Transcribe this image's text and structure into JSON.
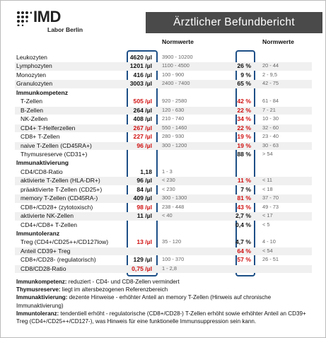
{
  "header": {
    "logo": "IMD",
    "logo_sub": "Labor Berlin",
    "title": "Ärztlicher Befundbericht"
  },
  "columns": {
    "norm_abs": "Normwerte",
    "norm_pct": "Normwerte"
  },
  "alert_color": "#d01010",
  "rows": [
    {
      "label": "Leukozyten",
      "value": "4620 /µl",
      "norm": "3900 - 10200"
    },
    {
      "label": "Lymphozyten",
      "value": "1201 /µl",
      "norm": "1100 - 4500",
      "percent": "26 %",
      "percent_norm": "20 - 44"
    },
    {
      "label": "Monozyten",
      "value": "416 /µl",
      "norm": "100 - 900",
      "percent": "9 %",
      "percent_norm": "2 - 9,5"
    },
    {
      "label": "Granulozyten",
      "value": "3003 /µl",
      "norm": "2400 - 7400",
      "percent": "65 %",
      "percent_norm": "42 - 75"
    },
    {
      "section": "Immunkompetenz"
    },
    {
      "label": "T-Zellen",
      "value": "505 /µl",
      "value_alert": true,
      "norm": "920 - 2580",
      "percent": "42 %",
      "percent_alert": true,
      "percent_norm": "61 - 84"
    },
    {
      "label": "B-Zellen",
      "value": "264 /µl",
      "norm": "120 - 630",
      "percent": "22 %",
      "percent_alert": true,
      "percent_norm": "7 - 21"
    },
    {
      "label": "NK-Zellen",
      "value": "408 /µl",
      "norm": "210 - 740",
      "percent": "34 %",
      "percent_alert": true,
      "percent_norm": "10 - 30"
    },
    {
      "label": "CD4+ T-Helferzellen",
      "value": "267 /µl",
      "value_alert": true,
      "norm": "550 - 1460",
      "percent": "22 %",
      "percent_alert": true,
      "percent_norm": "32 - 60"
    },
    {
      "label": "CD8+ T-Zellen",
      "value": "227 /µl",
      "value_alert": true,
      "norm": "280 - 930",
      "percent": "19 %",
      "percent_alert": true,
      "percent_norm": "23 - 40"
    },
    {
      "label": "naive T-Zellen (CD45RA+)",
      "value": "96 /µl",
      "value_alert": true,
      "norm": "300 - 1200",
      "percent": "19 %",
      "percent_alert": true,
      "percent_norm": "30 - 63"
    },
    {
      "label": "Thymusreserve (CD31+)",
      "percent": "88 %",
      "percent_norm": "> 54"
    },
    {
      "section": "Immunaktivierung"
    },
    {
      "label": "CD4/CD8-Ratio",
      "value": "1,18",
      "norm": "1 - 3"
    },
    {
      "label": "aktivierte T-Zellen (HLA-DR+)",
      "value": "96 /µl",
      "norm": "< 230",
      "percent": "11 %",
      "percent_alert": true,
      "percent_norm": "< 11"
    },
    {
      "label": "präaktivierte T-Zellen (CD25+)",
      "value": "84 /µl",
      "norm": "< 230",
      "percent": "7 %",
      "percent_norm": "< 18"
    },
    {
      "label": "memory T-Zellen (CD45RA-)",
      "value": "409 /µl",
      "norm": "300 - 1300",
      "percent": "81 %",
      "percent_alert": true,
      "percent_norm": "37 - 70"
    },
    {
      "label": "CD8+/CD28+ (zytotoxisch)",
      "value": "98 /µl",
      "value_alert": true,
      "norm": "238 - 448",
      "percent": "43 %",
      "percent_alert": true,
      "percent_norm": "49 - 73"
    },
    {
      "label": "aktivierte NK-Zellen",
      "value": "11 /µl",
      "norm": "< 40",
      "percent": "2,7 %",
      "percent_norm": "< 17"
    },
    {
      "label": "CD4+/CD8+ T-Zellen",
      "percent": "0,4 %",
      "percent_norm": "< 5"
    },
    {
      "section": "Immuntoleranz"
    },
    {
      "label": "Treg (CD4+/CD25++/CD127low)",
      "value": "13 /µl",
      "value_alert": true,
      "norm": "35 - 120",
      "percent": "4,7 %",
      "percent_norm": "4 - 10"
    },
    {
      "label": "Anteil CD39+ Treg",
      "percent": "64 %",
      "percent_alert": true,
      "percent_norm": "< 54"
    },
    {
      "label": "CD8+/CD28- (regulatorisch)",
      "value": "129 /µl",
      "norm": "100 - 370",
      "percent": "57 %",
      "percent_alert": true,
      "percent_norm": "26 - 51"
    },
    {
      "label": "CD8/CD28-Ratio",
      "value": "0,75 /µl",
      "value_alert": true,
      "norm": "1 - 2,8"
    }
  ],
  "notes": [
    {
      "label": "Immunkompetenz:",
      "text": "reduziert - CD4- und CD8-Zellen vermindert"
    },
    {
      "label": "Thymusreserve:",
      "text": "liegt im altersbezogenen Referenzbereich"
    },
    {
      "label": "Immunaktivierung:",
      "text": "dezente Hinweise - erhöhter Anteil an memory T-Zellen (Hinweis auf chronische Immunaktivierung)"
    },
    {
      "label": "Immuntoleranz:",
      "text": "tendentiell erhöht - regulatorische (CD8+/CD28-) T-Zellen erhöht sowie erhöhter Anteil an CD39+ Treg (CD4+/CD25++/CD127-), was Hinweis für eine funktionelle Immunsuppression sein kann."
    }
  ]
}
